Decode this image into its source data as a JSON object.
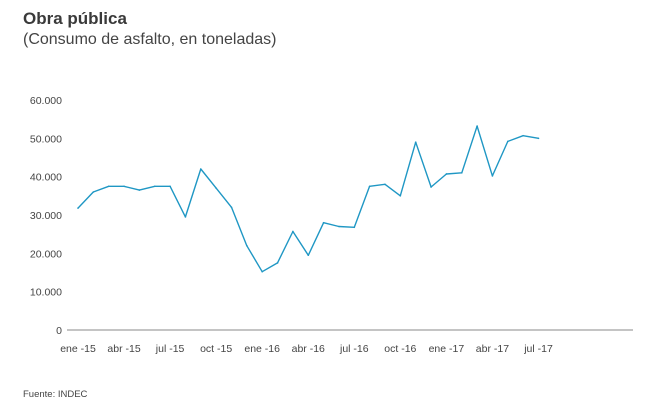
{
  "header": {
    "title": "Obra pública",
    "subtitle": "(Consumo de asfalto, en toneladas)"
  },
  "footer": {
    "source": "Fuente: INDEC"
  },
  "colors": {
    "line": "#1f97c4",
    "axis": "#8a8a8a",
    "text": "#444444"
  },
  "chart_data": {
    "type": "line",
    "title": "Obra pública",
    "subtitle": "(Consumo de asfalto, en toneladas)",
    "xlabel": "",
    "ylabel": "",
    "ylim": [
      0,
      60000
    ],
    "yticks": [
      0,
      10000,
      20000,
      30000,
      40000,
      50000,
      60000
    ],
    "ytick_labels": [
      "0",
      "10.000",
      "20.000",
      "30.000",
      "40.000",
      "50.000",
      "60.000"
    ],
    "grid": false,
    "legend": "none",
    "x": [
      "ene -15",
      "feb -15",
      "mar -15",
      "abr -15",
      "may -15",
      "jun -15",
      "jul -15",
      "ago -15",
      "sep -15",
      "oct -15",
      "nov -15",
      "dic -15",
      "ene -16",
      "feb -16",
      "mar -16",
      "abr -16",
      "may -16",
      "jun -16",
      "jul -16",
      "ago -16",
      "sep -16",
      "oct -16",
      "nov -16",
      "dic -16",
      "ene -17",
      "feb -17",
      "mar -17",
      "abr -17",
      "may -17",
      "jun -17",
      "jul -17"
    ],
    "xtick_labels": [
      "ene -15",
      "abr -15",
      "jul -15",
      "oct -15",
      "ene -16",
      "abr -16",
      "jul -16",
      "oct -16",
      "ene -17",
      "abr -17",
      "jul -17"
    ],
    "xtick_indices": [
      0,
      3,
      6,
      9,
      12,
      15,
      18,
      21,
      24,
      27,
      30
    ],
    "series": [
      {
        "values": [
          31800,
          36000,
          37500,
          37500,
          36500,
          37500,
          37500,
          29500,
          42000,
          37000,
          32000,
          22000,
          15200,
          17500,
          25700,
          19500,
          28000,
          27000,
          26800,
          37500,
          38000,
          35000,
          49000,
          37300,
          40700,
          41000,
          53200,
          40200,
          49200,
          50700,
          50000
        ]
      }
    ]
  }
}
